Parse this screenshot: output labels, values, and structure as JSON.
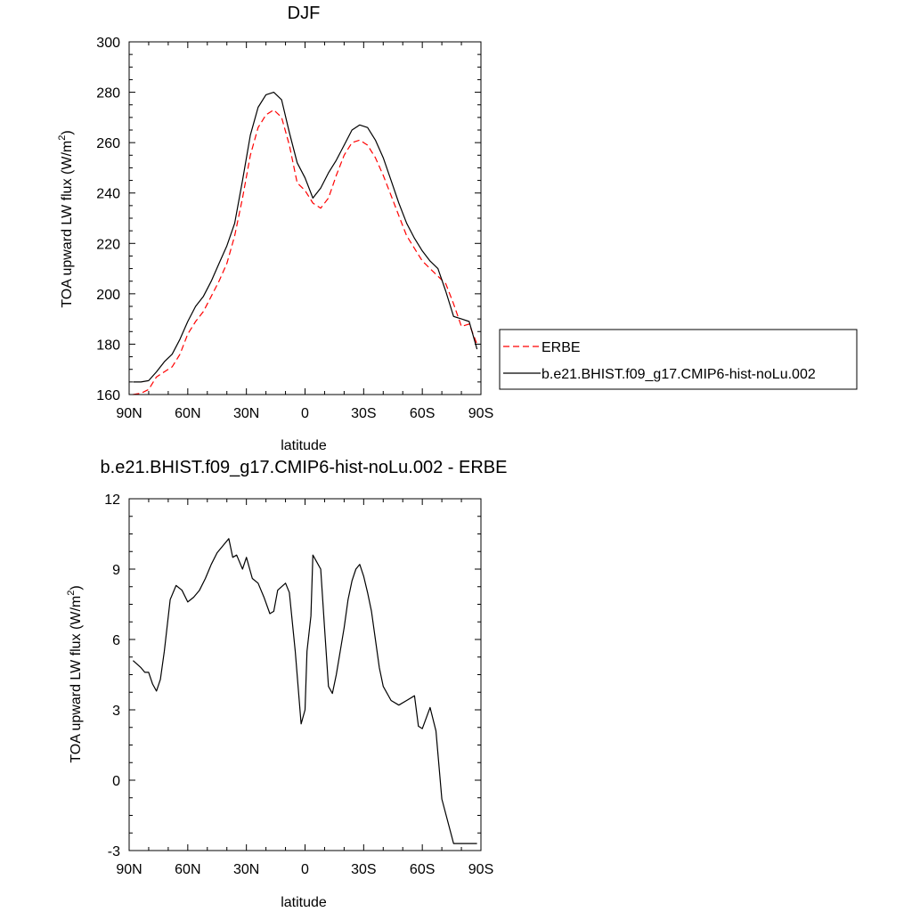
{
  "chart_data": [
    {
      "type": "line",
      "title": "DJF",
      "xlabel": "latitude",
      "ylabel": "TOA upward LW flux (W/m",
      "ylabel_sup": "2",
      "ylabel_end": ")",
      "xlim": [
        90,
        -90
      ],
      "ylim": [
        160,
        300
      ],
      "xticks": [
        90,
        60,
        30,
        0,
        -30,
        -60,
        -90
      ],
      "xtick_labels": [
        "90N",
        "60N",
        "30N",
        "0",
        "30S",
        "60S",
        "90S"
      ],
      "yticks": [
        160,
        180,
        200,
        220,
        240,
        260,
        280,
        300
      ],
      "ytick_labels": [
        "160",
        "180",
        "200",
        "220",
        "240",
        "260",
        "280",
        "300"
      ],
      "legend": "right",
      "series": [
        {
          "name": "ERBE",
          "color": "#ff0000",
          "dash": true,
          "x": [
            88,
            84,
            80,
            76,
            72,
            68,
            64,
            60,
            56,
            52,
            48,
            44,
            40,
            36,
            32,
            28,
            24,
            20,
            16,
            12,
            8,
            4,
            0,
            -4,
            -8,
            -12,
            -16,
            -20,
            -24,
            -28,
            -32,
            -36,
            -40,
            -44,
            -48,
            -52,
            -56,
            -60,
            -64,
            -68,
            -72,
            -76,
            -80,
            -84,
            -88
          ],
          "y": [
            160,
            160.5,
            162,
            167,
            169,
            171,
            176,
            184,
            189,
            193,
            199,
            205,
            212,
            223,
            238,
            255,
            266,
            271,
            273,
            270,
            259,
            244,
            241,
            236,
            234,
            238,
            247,
            255,
            260,
            261,
            259,
            254,
            247,
            239,
            231,
            223,
            218,
            213,
            210,
            207,
            204,
            196,
            187,
            188,
            180
          ]
        },
        {
          "name": "b.e21.BHIST.f09_g17.CMIP6-hist-noLu.002",
          "color": "#000000",
          "dash": false,
          "x": [
            88,
            84,
            80,
            76,
            72,
            68,
            64,
            60,
            56,
            52,
            48,
            44,
            40,
            36,
            32,
            28,
            24,
            20,
            16,
            12,
            8,
            4,
            0,
            -4,
            -8,
            -12,
            -16,
            -20,
            -24,
            -28,
            -32,
            -36,
            -40,
            -44,
            -48,
            -52,
            -56,
            -60,
            -64,
            -68,
            -72,
            -76,
            -80,
            -84,
            -88
          ],
          "y": [
            165,
            165,
            165.5,
            169,
            173,
            176,
            182,
            189,
            195,
            199,
            205,
            212,
            219,
            228,
            245,
            263,
            274,
            279,
            280,
            277,
            264,
            252,
            246,
            238,
            242,
            248,
            253,
            259,
            265,
            267,
            266,
            261,
            254,
            245,
            236,
            228,
            222,
            217,
            213,
            210,
            201,
            191,
            190,
            189,
            178
          ]
        }
      ]
    },
    {
      "type": "line",
      "title": "b.e21.BHIST.f09_g17.CMIP6-hist-noLu.002 - ERBE",
      "xlabel": "latitude",
      "ylabel": "TOA upward LW flux (W/m",
      "ylabel_sup": "2",
      "ylabel_end": ")",
      "xlim": [
        90,
        -90
      ],
      "ylim": [
        -3,
        12
      ],
      "xticks": [
        90,
        60,
        30,
        0,
        -30,
        -60,
        -90
      ],
      "xtick_labels": [
        "90N",
        "60N",
        "30N",
        "0",
        "30S",
        "60S",
        "90S"
      ],
      "yticks": [
        -3,
        0,
        3,
        6,
        9,
        12
      ],
      "ytick_labels": [
        "-3",
        "0",
        "3",
        "6",
        "9",
        "12"
      ],
      "series": [
        {
          "color": "#000000",
          "dash": false,
          "x": [
            88,
            84,
            82,
            80,
            78,
            76,
            74,
            72,
            69,
            66,
            63,
            60,
            57,
            54,
            51,
            48,
            45,
            42,
            39,
            37,
            35,
            32,
            30,
            27,
            24,
            21,
            18,
            16,
            14,
            10,
            8,
            5,
            2,
            0,
            -1,
            -3,
            -4,
            -6,
            -8,
            -10,
            -12,
            -14,
            -16,
            -18,
            -20,
            -22,
            -24,
            -26,
            -28,
            -30,
            -32,
            -34,
            -36,
            -38,
            -40,
            -44,
            -48,
            -52,
            -56,
            -58,
            -60,
            -64,
            -67,
            -70,
            -76,
            -80,
            -82,
            -84,
            -87,
            -88
          ],
          "y": [
            5.1,
            4.8,
            4.6,
            4.6,
            4.1,
            3.8,
            4.3,
            5.5,
            7.7,
            8.3,
            8.1,
            7.6,
            7.8,
            8.1,
            8.6,
            9.2,
            9.7,
            10.0,
            10.3,
            9.5,
            9.6,
            9.0,
            9.5,
            8.6,
            8.4,
            7.8,
            7.1,
            7.2,
            8.1,
            8.4,
            8.0,
            5.5,
            2.4,
            3.0,
            5.5,
            7.0,
            9.6,
            9.3,
            9.0,
            6.5,
            4.0,
            3.7,
            4.5,
            5.5,
            6.5,
            7.7,
            8.5,
            9.0,
            9.2,
            8.7,
            8.0,
            7.2,
            6.0,
            4.8,
            4.0,
            3.4,
            3.2,
            3.4,
            3.6,
            2.3,
            2.2,
            3.1,
            2.1,
            -0.8,
            -2.7,
            -2.7,
            -2.7,
            -2.7,
            -2.7,
            -2.7
          ]
        }
      ]
    }
  ]
}
